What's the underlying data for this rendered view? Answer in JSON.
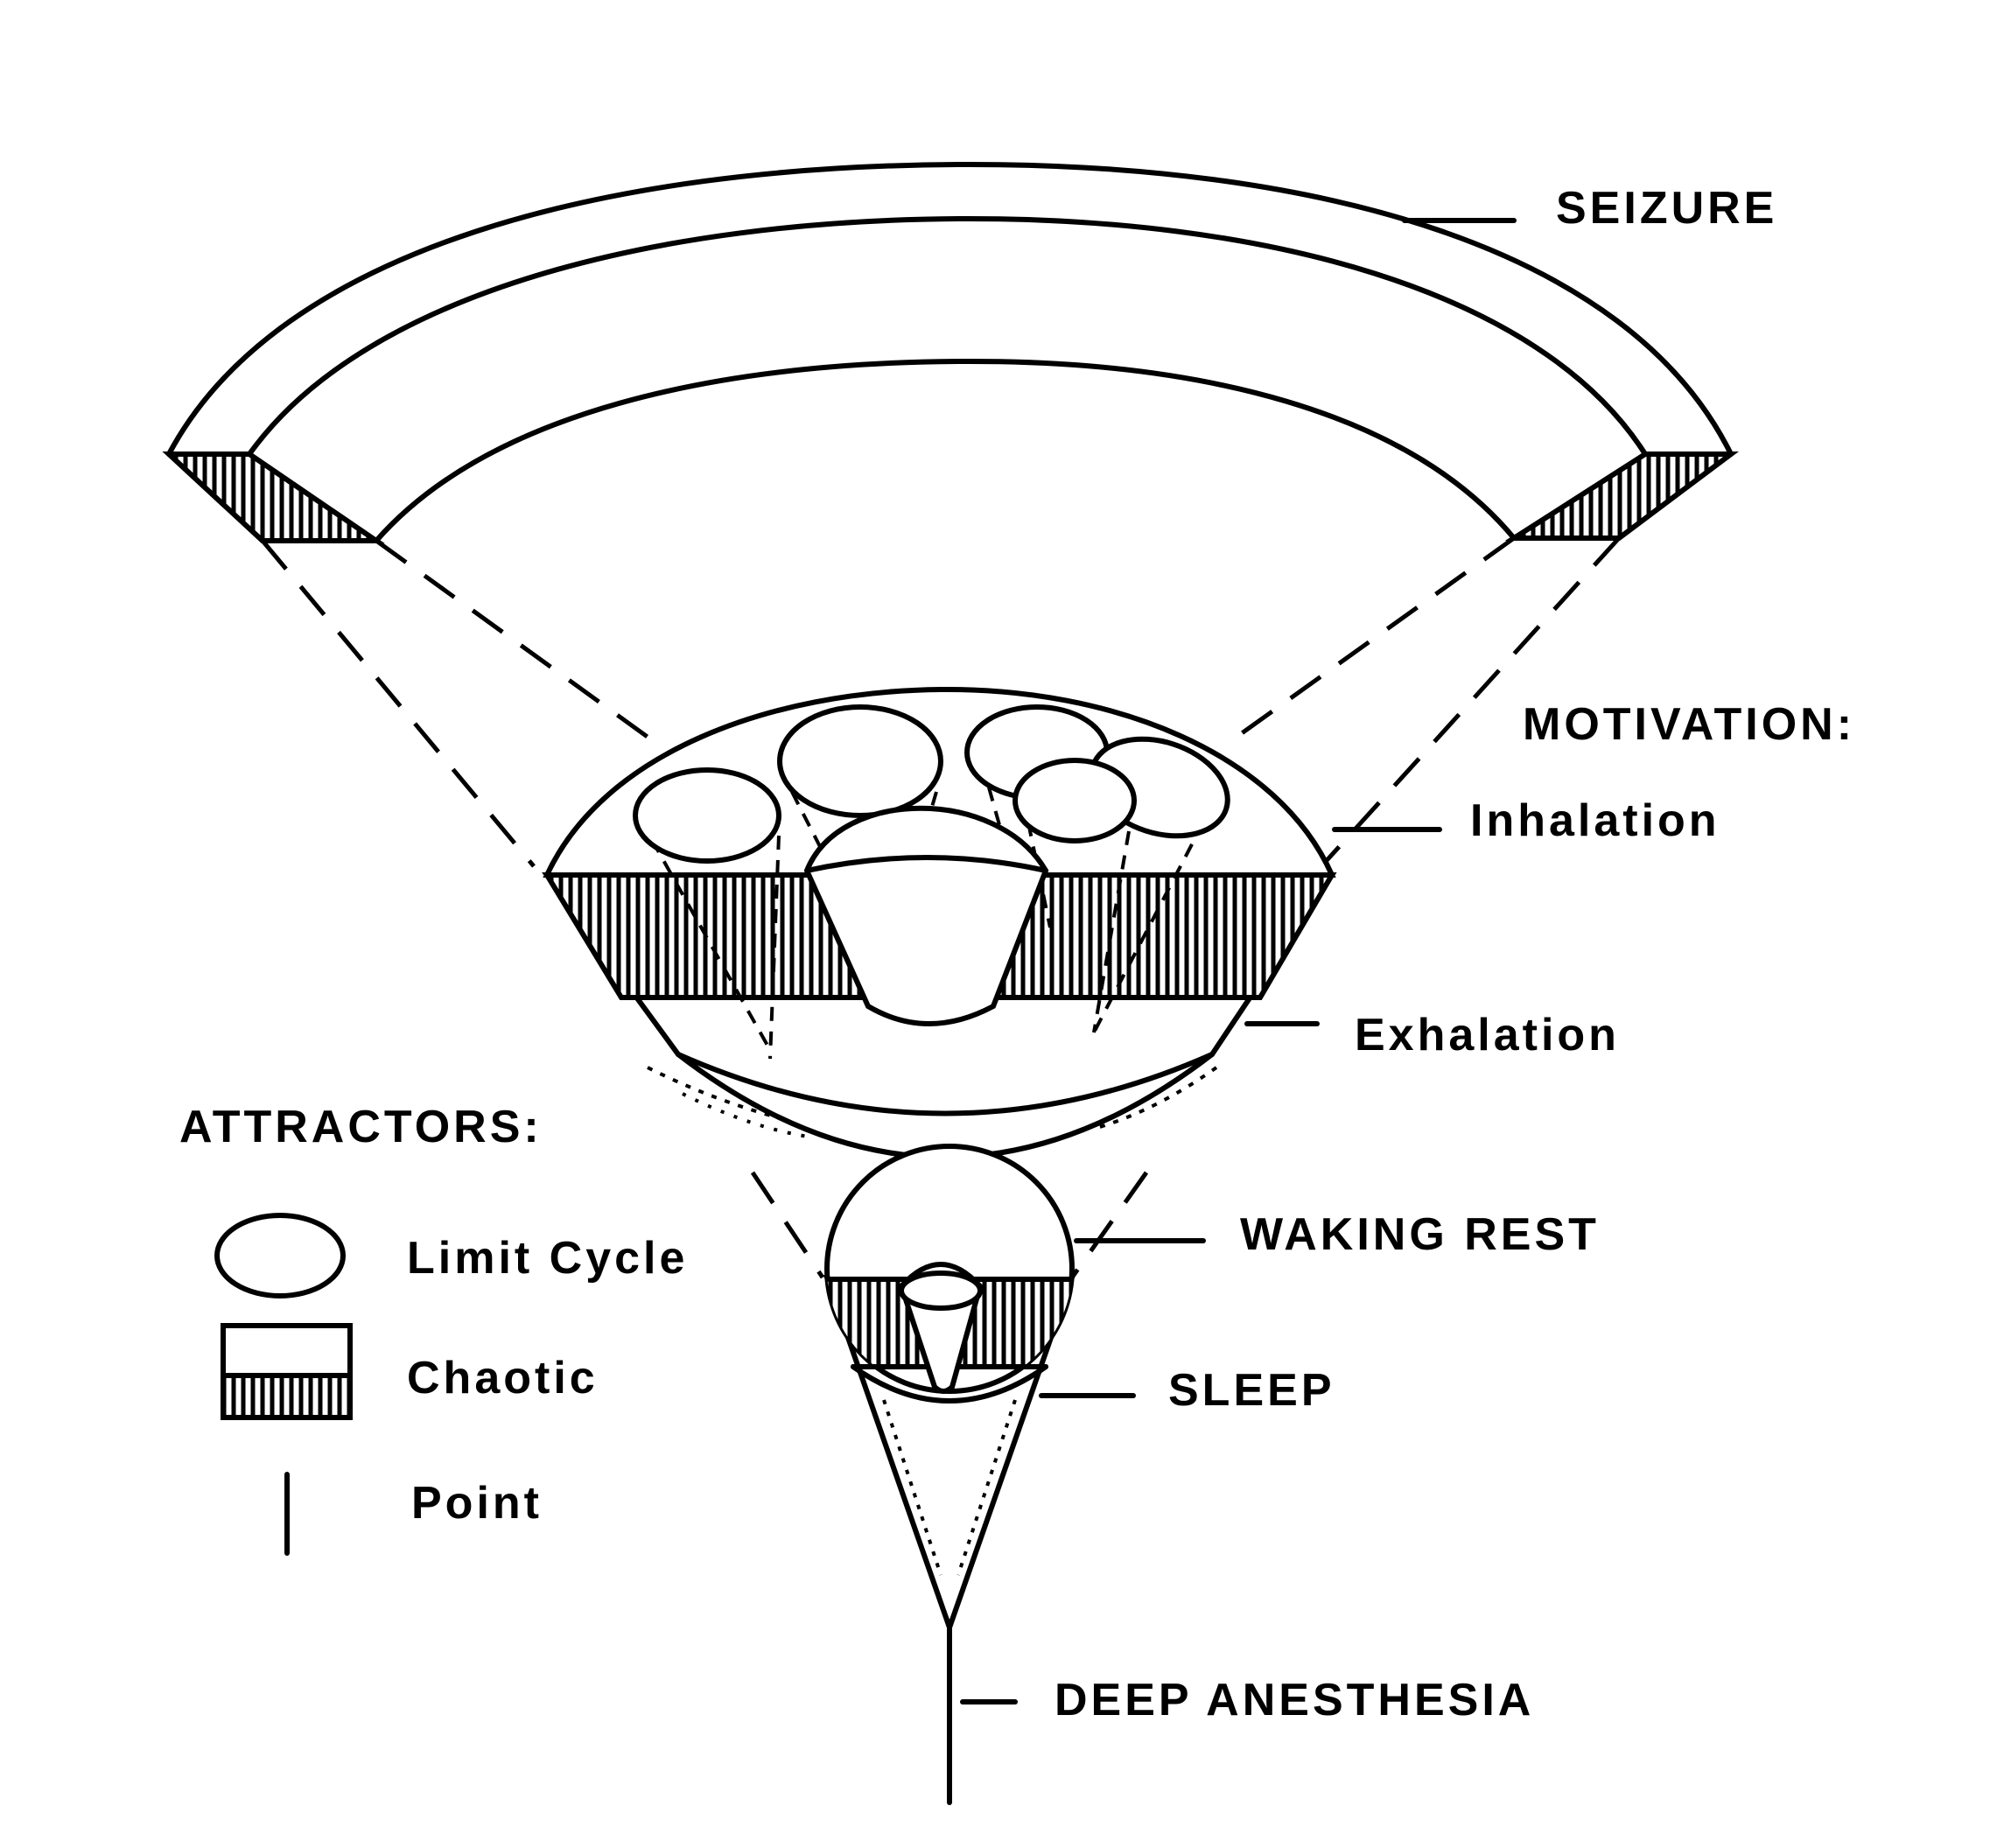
{
  "labels": {
    "seizure": "SEIZURE",
    "motivation": "MOTIVATION:",
    "inhalation": "Inhalation",
    "exhalation": "Exhalation",
    "waking_rest": "WAKING REST",
    "sleep": "SLEEP",
    "deep_anesthesia": "DEEP ANESTHESIA"
  },
  "legend": {
    "title": "ATTRACTORS:",
    "limit_cycle": "Limit Cycle",
    "chaotic": "Chaotic",
    "point": "Point"
  }
}
